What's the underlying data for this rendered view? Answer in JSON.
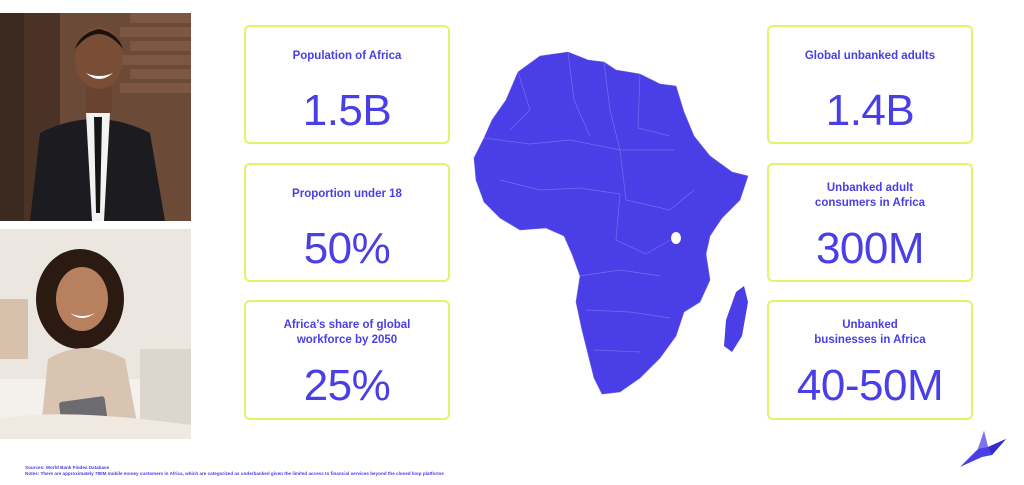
{
  "cards_left": [
    {
      "label": "Population of Africa",
      "value": "1.5B"
    },
    {
      "label": "Proportion under 18",
      "value": "50%"
    },
    {
      "label": "Africa’s share of global\nworkforce by 2050",
      "value": "25%"
    }
  ],
  "cards_right": [
    {
      "label": "Global unbanked adults",
      "value": "1.4B"
    },
    {
      "label": "Unbanked adult\nconsumers in Africa",
      "value": "300M"
    },
    {
      "label": "Unbanked\nbusinesses in Africa",
      "value": "40-50M"
    }
  ],
  "footer": {
    "sources": "Sources: World Bank Findex Database",
    "notes": "Notes: There are approximately 780M mobile money customers in Africa, which are categorized as underbanked given the limited access to financial services beyond the closed loop platforms"
  },
  "colors": {
    "accent": "#4a3ee6",
    "card_border": "#e3f36a"
  },
  "icons": {
    "logo": "bird-logo-icon",
    "map": "africa-map"
  }
}
